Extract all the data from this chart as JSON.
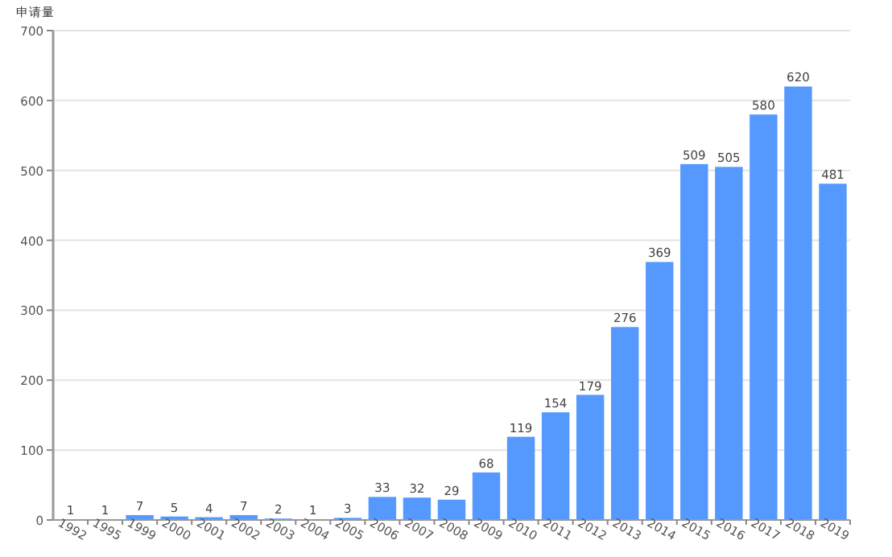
{
  "chart_data": {
    "type": "bar",
    "ylabel": "申请量",
    "categories": [
      "1992",
      "1995",
      "1999",
      "2000",
      "2001",
      "2002",
      "2003",
      "2004",
      "2005",
      "2006",
      "2007",
      "2008",
      "2009",
      "2010",
      "2011",
      "2012",
      "2013",
      "2014",
      "2015",
      "2016",
      "2017",
      "2018",
      "2019"
    ],
    "values": [
      1,
      1,
      7,
      5,
      4,
      7,
      2,
      1,
      3,
      33,
      32,
      29,
      68,
      119,
      154,
      179,
      276,
      369,
      509,
      505,
      580,
      620,
      481
    ],
    "color": "#5599ff",
    "ylim": [
      0,
      700
    ],
    "yticks": [
      0,
      100,
      200,
      300,
      400,
      500,
      600,
      700
    ],
    "grid": "y",
    "data_labels": true
  }
}
